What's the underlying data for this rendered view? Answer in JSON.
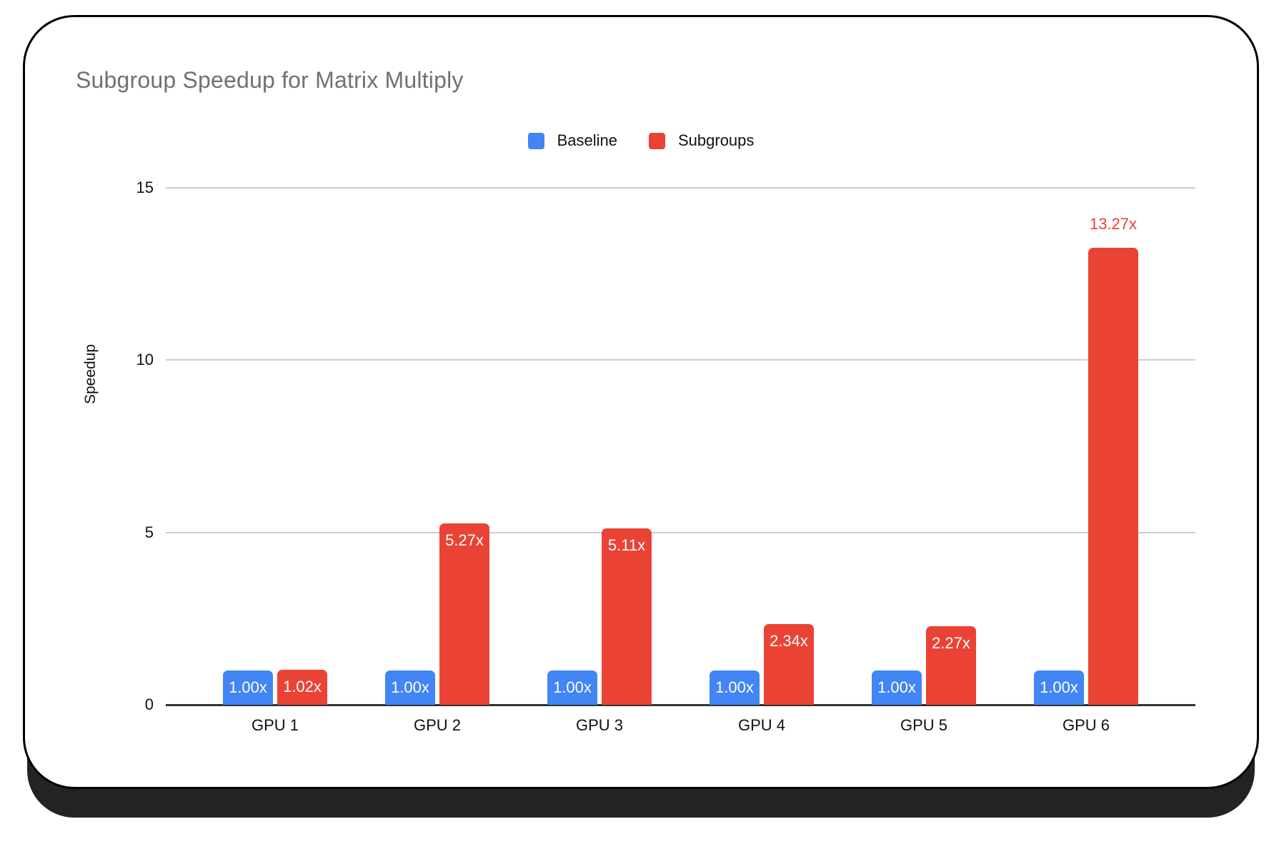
{
  "chart_data": {
    "type": "bar",
    "title": "Subgroup Speedup for Matrix Multiply",
    "ylabel": "Speedup",
    "xlabel": "",
    "categories": [
      "GPU 1",
      "GPU 2",
      "GPU 3",
      "GPU 4",
      "GPU 5",
      "GPU 6"
    ],
    "series": [
      {
        "name": "Baseline",
        "color": "#4285F4",
        "values": [
          1.0,
          1.0,
          1.0,
          1.0,
          1.0,
          1.0
        ],
        "labels": [
          "1.00x",
          "1.00x",
          "1.00x",
          "1.00x",
          "1.00x",
          "1.00x"
        ],
        "label_placement": [
          "inside",
          "inside",
          "inside",
          "inside",
          "inside",
          "inside"
        ]
      },
      {
        "name": "Subgroups",
        "color": "#EA4335",
        "values": [
          1.02,
          5.27,
          5.11,
          2.34,
          2.27,
          13.27
        ],
        "labels": [
          "1.02x",
          "5.27x",
          "5.11x",
          "2.34x",
          "2.27x",
          "13.27x"
        ],
        "label_placement": [
          "inside",
          "inside",
          "inside",
          "inside",
          "inside",
          "above"
        ]
      }
    ],
    "ylim": [
      0,
      15
    ],
    "yticks": [
      0,
      5,
      10,
      15
    ],
    "grid": true,
    "legend_position": "top-center",
    "inside_label_color": "#ffffff"
  },
  "colors": {
    "grid": "#cecece",
    "baseline": "#333333",
    "title": "#717171",
    "tick": "#111111",
    "card_border": "#000000",
    "card_shadow": "#232323",
    "background": "#ffffff"
  }
}
